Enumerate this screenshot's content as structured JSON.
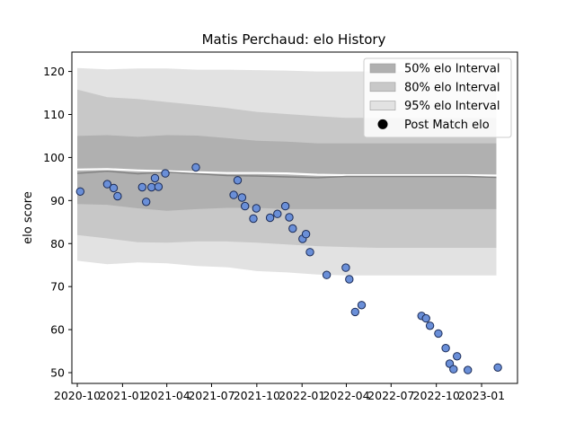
{
  "chart_data": {
    "type": "scatter",
    "title": "Matis Perchaud: elo History",
    "xlabel": "",
    "ylabel": "elo score",
    "xlim": [
      "2020-09-20",
      "2023-03-15"
    ],
    "ylim": [
      47.5,
      124.5
    ],
    "x_ticks": [
      {
        "date": "2020-10-01",
        "label": "2020-10"
      },
      {
        "date": "2021-01-01",
        "label": "2021-01"
      },
      {
        "date": "2021-04-01",
        "label": "2021-04"
      },
      {
        "date": "2021-07-01",
        "label": "2021-07"
      },
      {
        "date": "2021-10-01",
        "label": "2021-10"
      },
      {
        "date": "2022-01-01",
        "label": "2022-01"
      },
      {
        "date": "2022-04-01",
        "label": "2022-04"
      },
      {
        "date": "2022-07-01",
        "label": "2022-07"
      },
      {
        "date": "2022-10-01",
        "label": "2022-10"
      },
      {
        "date": "2023-01-01",
        "label": "2023-01"
      }
    ],
    "y_ticks": [
      50,
      60,
      70,
      80,
      90,
      100,
      110,
      120
    ],
    "grid": false,
    "legend": {
      "position": "top-right",
      "entries": [
        {
          "label": "50% elo Interval",
          "color": "#b0b0b0",
          "kind": "patch"
        },
        {
          "label": "80% elo Interval",
          "color": "#c8c8c8",
          "kind": "patch"
        },
        {
          "label": "95% elo Interval",
          "color": "#e2e2e2",
          "kind": "patch"
        },
        {
          "label": "Post Match elo",
          "color": "#000000",
          "kind": "marker"
        }
      ]
    },
    "band_x": [
      "2020-10-01",
      "2020-12-01",
      "2021-02-01",
      "2021-04-01",
      "2021-06-01",
      "2021-08-01",
      "2021-10-01",
      "2021-12-01",
      "2022-02-01",
      "2022-04-01",
      "2022-06-01",
      "2022-08-01",
      "2022-10-01",
      "2022-12-01",
      "2023-01-31"
    ],
    "bands": {
      "p95_upper": [
        120.8,
        120.5,
        120.7,
        120.7,
        120.4,
        120.4,
        120.3,
        120.2,
        120.0,
        120.0,
        120.0,
        120.0,
        120.0,
        120.0,
        120.0
      ],
      "p80_upper": [
        115.8,
        114.0,
        113.6,
        112.9,
        112.2,
        111.5,
        110.6,
        110.1,
        109.6,
        109.2,
        109.2,
        109.2,
        109.2,
        109.2,
        109.2
      ],
      "p50_upper": [
        105.0,
        105.2,
        104.8,
        105.2,
        105.1,
        104.5,
        103.9,
        103.7,
        103.3,
        103.3,
        103.3,
        103.3,
        103.3,
        103.3,
        103.3
      ],
      "p50_lower": [
        89.2,
        89.0,
        88.2,
        87.6,
        88.0,
        88.3,
        88.3,
        88.0,
        88.0,
        88.0,
        88.0,
        88.0,
        88.0,
        88.0,
        88.0
      ],
      "p80_lower": [
        82.0,
        81.2,
        80.3,
        80.2,
        80.5,
        80.5,
        80.2,
        79.8,
        79.4,
        79.2,
        79.0,
        79.0,
        79.0,
        79.0,
        79.0
      ],
      "p95_lower": [
        76.0,
        75.2,
        75.6,
        75.4,
        74.8,
        74.5,
        73.6,
        73.3,
        72.8,
        72.6,
        72.6,
        72.6,
        72.6,
        72.6,
        72.6
      ]
    },
    "mean_line": {
      "color": "#ffffff",
      "values": [
        97.2,
        97.3,
        97.0,
        96.8,
        96.6,
        96.4,
        96.4,
        96.3,
        96.0,
        95.9,
        95.9,
        95.9,
        95.9,
        95.9,
        95.8
      ]
    },
    "median_line": {
      "color": "#808080",
      "values": [
        96.3,
        96.8,
        96.2,
        96.6,
        96.2,
        95.8,
        95.7,
        95.5,
        95.3,
        95.6,
        95.6,
        95.6,
        95.6,
        95.6,
        95.4
      ]
    },
    "series": [
      {
        "name": "Post Match elo",
        "marker_color": "#6a8fd8",
        "edge_color": "#1a2a55",
        "points": [
          {
            "x": "2020-10-07",
            "y": 92.1
          },
          {
            "x": "2020-12-01",
            "y": 93.8
          },
          {
            "x": "2020-12-14",
            "y": 92.9
          },
          {
            "x": "2020-12-22",
            "y": 91.0
          },
          {
            "x": "2021-02-10",
            "y": 93.1
          },
          {
            "x": "2021-02-18",
            "y": 89.7
          },
          {
            "x": "2021-03-01",
            "y": 93.1
          },
          {
            "x": "2021-03-08",
            "y": 95.2
          },
          {
            "x": "2021-03-15",
            "y": 93.2
          },
          {
            "x": "2021-03-29",
            "y": 96.3
          },
          {
            "x": "2021-05-30",
            "y": 97.7
          },
          {
            "x": "2021-08-15",
            "y": 91.3
          },
          {
            "x": "2021-08-23",
            "y": 94.7
          },
          {
            "x": "2021-09-01",
            "y": 90.7
          },
          {
            "x": "2021-09-07",
            "y": 88.7
          },
          {
            "x": "2021-09-24",
            "y": 85.8
          },
          {
            "x": "2021-09-30",
            "y": 88.2
          },
          {
            "x": "2021-10-28",
            "y": 86.0
          },
          {
            "x": "2021-11-12",
            "y": 86.9
          },
          {
            "x": "2021-11-28",
            "y": 88.7
          },
          {
            "x": "2021-12-06",
            "y": 86.1
          },
          {
            "x": "2021-12-13",
            "y": 83.5
          },
          {
            "x": "2022-01-02",
            "y": 81.1
          },
          {
            "x": "2022-01-09",
            "y": 82.2
          },
          {
            "x": "2022-01-17",
            "y": 78.0
          },
          {
            "x": "2022-02-20",
            "y": 72.7
          },
          {
            "x": "2022-03-31",
            "y": 74.4
          },
          {
            "x": "2022-04-07",
            "y": 71.7
          },
          {
            "x": "2022-04-19",
            "y": 64.1
          },
          {
            "x": "2022-05-02",
            "y": 65.7
          },
          {
            "x": "2022-09-01",
            "y": 63.2
          },
          {
            "x": "2022-09-10",
            "y": 62.6
          },
          {
            "x": "2022-09-18",
            "y": 60.9
          },
          {
            "x": "2022-10-05",
            "y": 59.1
          },
          {
            "x": "2022-10-20",
            "y": 55.7
          },
          {
            "x": "2022-10-28",
            "y": 52.1
          },
          {
            "x": "2022-11-05",
            "y": 50.8
          },
          {
            "x": "2022-11-12",
            "y": 53.8
          },
          {
            "x": "2022-12-04",
            "y": 50.6
          },
          {
            "x": "2023-02-03",
            "y": 51.2
          }
        ]
      }
    ]
  }
}
